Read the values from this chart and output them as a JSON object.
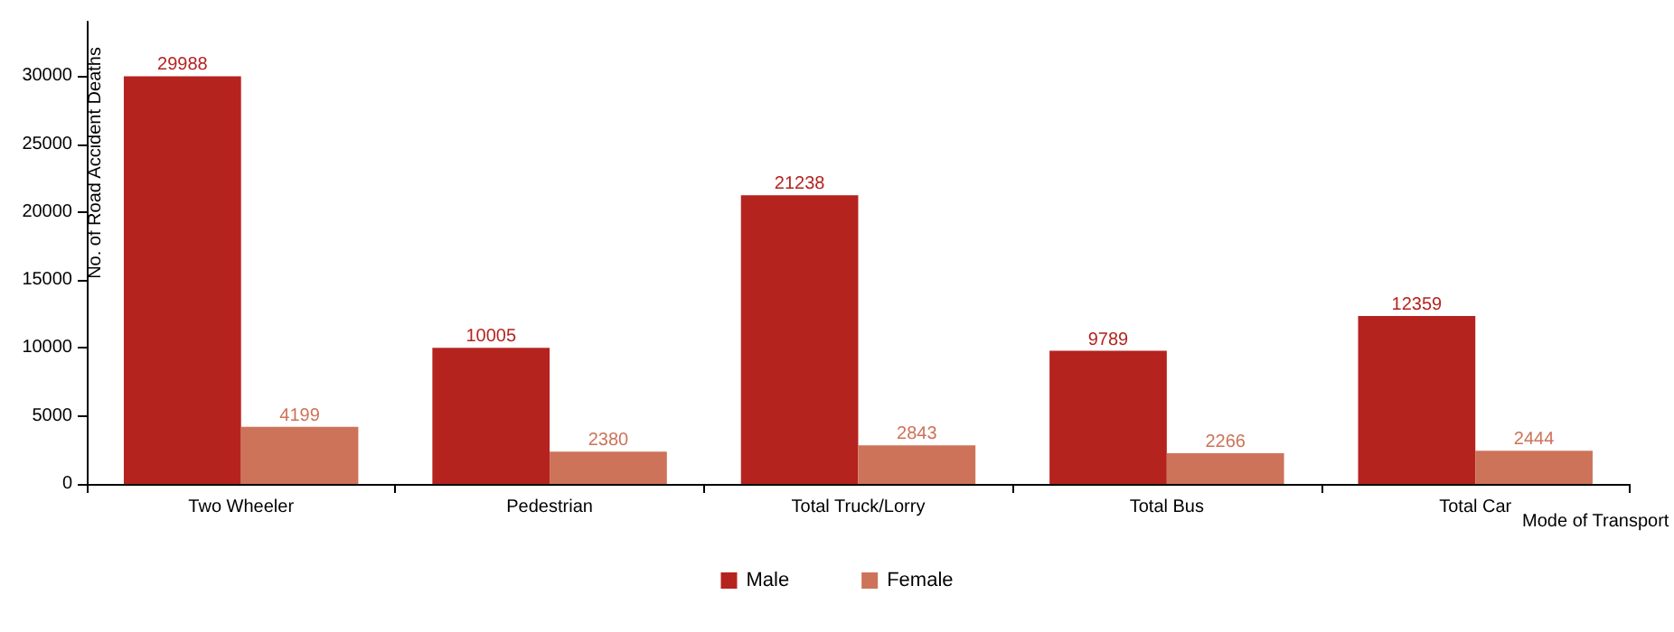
{
  "chart_data": {
    "type": "bar",
    "xlabel": "Mode of Transport",
    "ylabel": "No. of Road Accident Deaths",
    "categories": [
      "Two Wheeler",
      "Pedestrian",
      "Total Truck/Lorry",
      "Total Bus",
      "Total Car"
    ],
    "series": [
      {
        "name": "Male",
        "color": "#b5231f",
        "values": [
          29988,
          10005,
          21238,
          9789,
          12359
        ]
      },
      {
        "name": "Female",
        "color": "#cd7359",
        "values": [
          4199,
          2380,
          2843,
          2266,
          2444
        ]
      }
    ],
    "ylim": [
      0,
      34000
    ],
    "yticks": [
      0,
      5000,
      10000,
      15000,
      20000,
      25000,
      30000
    ],
    "grid": false,
    "legend": "bottom",
    "data_labels": true
  }
}
